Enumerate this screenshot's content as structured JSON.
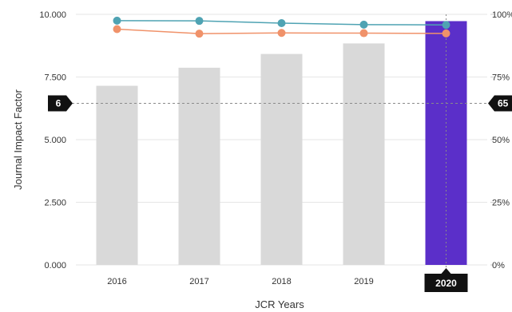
{
  "chart_data": {
    "type": "bar",
    "xlabel": "JCR Years",
    "ylabel": "Journal Impact Factor",
    "categories": [
      "2016",
      "2017",
      "2018",
      "2019",
      "2020"
    ],
    "values": [
      7.15,
      7.87,
      8.42,
      8.84,
      9.73
    ],
    "ylim": [
      0,
      10
    ],
    "y_tick_labels": [
      "0.000",
      "2.500",
      "5.000",
      "7.500",
      "10.000"
    ],
    "y2lim": [
      0,
      100
    ],
    "y2_tick_labels": [
      "0%",
      "25%",
      "50%",
      "75%",
      "100%"
    ],
    "bar_color": "#d9d9d9",
    "highlight": {
      "category": "2020",
      "color": "#5b2fc9"
    },
    "series": [
      {
        "type": "line",
        "axis": "right",
        "color": "#4fa3b3",
        "values": [
          97.5,
          97.4,
          96.5,
          95.9,
          95.8
        ]
      },
      {
        "type": "line",
        "axis": "right",
        "color": "#f0926a",
        "values": [
          94.1,
          92.3,
          92.6,
          92.5,
          92.4
        ]
      }
    ],
    "reference_line": {
      "value": 6.45,
      "left_label": "6",
      "right_label": "65"
    },
    "grid": true
  }
}
